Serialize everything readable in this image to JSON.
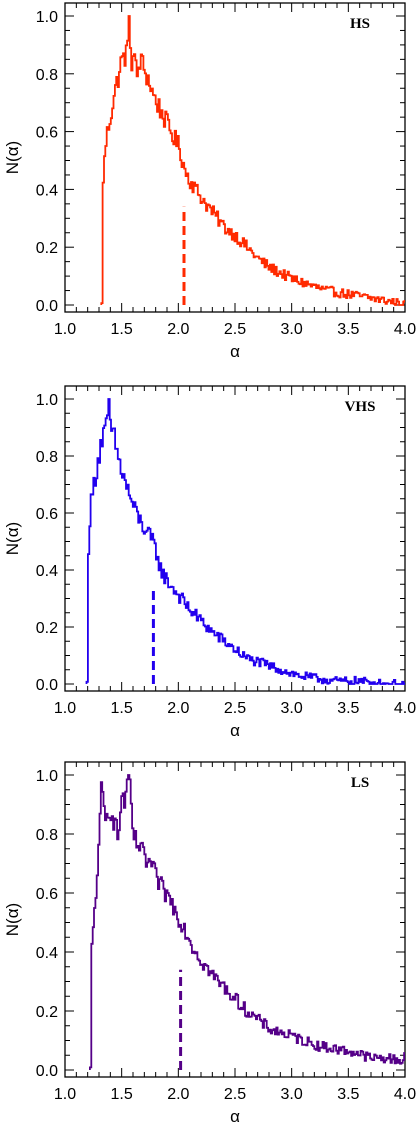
{
  "chart_data": [
    {
      "type": "line",
      "panel_label": "HS",
      "xlabel": "α",
      "ylabel": "N(α)",
      "xlim": [
        1.0,
        4.0
      ],
      "ylim": [
        0.0,
        1.0
      ],
      "xticks": [
        "1.0",
        "1.5",
        "2.0",
        "2.5",
        "3.0",
        "3.5",
        "4.0"
      ],
      "yticks": [
        "0.0",
        "0.2",
        "0.4",
        "0.6",
        "0.8",
        "1.0"
      ],
      "color": "#ff2a00",
      "onset": 1.32,
      "peak_at": 1.56,
      "median_marker": {
        "x": 2.05,
        "height": 0.34
      },
      "x": [
        1.32,
        1.33,
        1.36,
        1.4,
        1.43,
        1.46,
        1.49,
        1.52,
        1.55,
        1.56,
        1.58,
        1.6,
        1.63,
        1.66,
        1.7,
        1.74,
        1.78,
        1.83,
        1.88,
        1.94,
        2.0,
        2.05,
        2.1,
        2.15,
        2.22,
        2.3,
        2.4,
        2.5,
        2.6,
        2.7,
        2.8,
        2.9,
        3.0,
        3.15,
        3.3,
        3.45,
        3.6,
        3.75,
        3.9,
        4.0
      ],
      "values": [
        0.0,
        0.43,
        0.58,
        0.66,
        0.73,
        0.78,
        0.84,
        0.86,
        0.88,
        1.0,
        0.84,
        0.87,
        0.79,
        0.85,
        0.81,
        0.77,
        0.72,
        0.68,
        0.64,
        0.59,
        0.55,
        0.47,
        0.43,
        0.4,
        0.36,
        0.32,
        0.27,
        0.24,
        0.2,
        0.16,
        0.13,
        0.11,
        0.09,
        0.07,
        0.05,
        0.04,
        0.03,
        0.02,
        0.01,
        0.0
      ]
    },
    {
      "type": "line",
      "panel_label": "VHS",
      "xlabel": "α",
      "ylabel": "N(α)",
      "xlim": [
        1.0,
        4.0
      ],
      "ylim": [
        0.0,
        1.0
      ],
      "xticks": [
        "1.0",
        "1.5",
        "2.0",
        "2.5",
        "3.0",
        "3.5",
        "4.0"
      ],
      "yticks": [
        "0.0",
        "0.2",
        "0.4",
        "0.6",
        "0.8",
        "1.0"
      ],
      "color": "#2200ee",
      "onset": 1.19,
      "peak_at": 1.38,
      "median_marker": {
        "x": 1.78,
        "height": 0.34
      },
      "x": [
        1.19,
        1.2,
        1.22,
        1.25,
        1.28,
        1.31,
        1.34,
        1.37,
        1.38,
        1.4,
        1.43,
        1.46,
        1.5,
        1.55,
        1.6,
        1.66,
        1.72,
        1.78,
        1.85,
        1.92,
        2.0,
        2.1,
        2.2,
        2.3,
        2.4,
        2.5,
        2.6,
        2.75,
        2.9,
        3.05,
        3.2,
        3.4,
        3.6,
        3.8,
        4.0
      ],
      "values": [
        0.0,
        0.47,
        0.62,
        0.7,
        0.77,
        0.84,
        0.88,
        0.91,
        1.0,
        0.89,
        0.86,
        0.8,
        0.74,
        0.68,
        0.62,
        0.57,
        0.53,
        0.49,
        0.39,
        0.35,
        0.31,
        0.26,
        0.22,
        0.18,
        0.15,
        0.12,
        0.09,
        0.07,
        0.05,
        0.03,
        0.02,
        0.01,
        0.01,
        0.0,
        0.0
      ]
    },
    {
      "type": "line",
      "panel_label": "LS",
      "xlabel": "α",
      "ylabel": "N(α)",
      "xlim": [
        1.0,
        4.0
      ],
      "ylim": [
        0.0,
        1.0
      ],
      "xticks": [
        "1.0",
        "1.5",
        "2.0",
        "2.5",
        "3.0",
        "3.5",
        "4.0"
      ],
      "yticks": [
        "0.0",
        "0.2",
        "0.4",
        "0.6",
        "0.8",
        "1.0"
      ],
      "color": "#550088",
      "onset": 1.22,
      "peak_at": 1.56,
      "median_marker": {
        "x": 2.02,
        "height": 0.34
      },
      "x": [
        1.22,
        1.23,
        1.26,
        1.29,
        1.32,
        1.35,
        1.38,
        1.42,
        1.46,
        1.5,
        1.53,
        1.56,
        1.6,
        1.65,
        1.7,
        1.75,
        1.8,
        1.86,
        1.92,
        1.98,
        2.05,
        2.12,
        2.2,
        2.3,
        2.4,
        2.5,
        2.6,
        2.7,
        2.8,
        2.95,
        3.1,
        3.25,
        3.4,
        3.55,
        3.7,
        3.85,
        3.97,
        4.0
      ],
      "values": [
        0.0,
        0.4,
        0.57,
        0.72,
        0.97,
        0.83,
        0.9,
        0.86,
        0.79,
        0.93,
        0.91,
        1.0,
        0.78,
        0.76,
        0.71,
        0.7,
        0.65,
        0.61,
        0.58,
        0.53,
        0.48,
        0.42,
        0.37,
        0.32,
        0.28,
        0.24,
        0.2,
        0.17,
        0.14,
        0.12,
        0.1,
        0.08,
        0.07,
        0.06,
        0.04,
        0.04,
        0.03,
        0.07
      ]
    }
  ]
}
